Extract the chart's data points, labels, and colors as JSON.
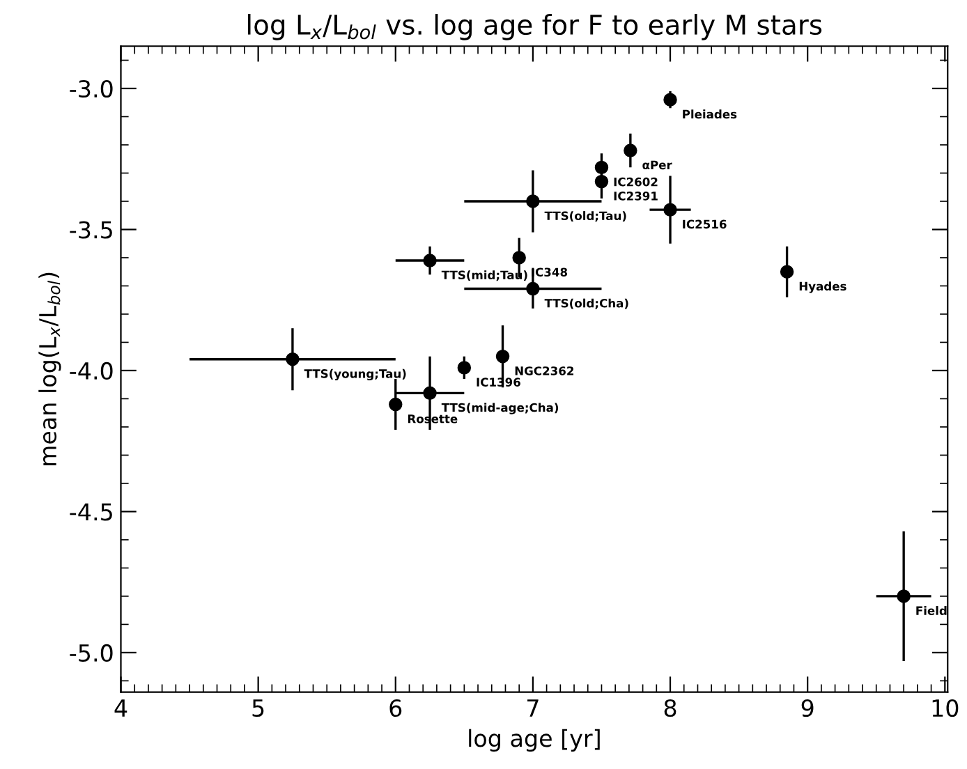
{
  "chart_data": {
    "type": "scatter",
    "title": "log L$_{x}$/L$_{bol}$ vs. log age for F to early M stars",
    "xlabel": "log age [yr]",
    "ylabel": "mean log(L$_{x}$/L$_{bol}$)",
    "xlim": [
      4,
      10.02
    ],
    "ylim": [
      -5.14,
      -2.85
    ],
    "xticks": [
      4,
      5,
      6,
      7,
      8,
      9,
      10
    ],
    "yticks": [
      {
        "value": -3.0,
        "label": "-3.0"
      },
      {
        "value": -3.5,
        "label": "-3.5"
      },
      {
        "value": -4.0,
        "label": "-4.0"
      },
      {
        "value": -4.5,
        "label": "-4.5"
      },
      {
        "value": -5.0,
        "label": "-5.0"
      }
    ],
    "grid": false,
    "legend": false,
    "marker": "circle",
    "series": [
      {
        "color": "#000000",
        "x": [
          8.0,
          7.71,
          7.5,
          7.5,
          7.0,
          8.0,
          6.25,
          6.9,
          7.0,
          8.85,
          5.25,
          6.5,
          6.78,
          6.25,
          6.0,
          9.7
        ],
        "values": [
          -3.04,
          -3.22,
          -3.28,
          -3.33,
          -3.4,
          -3.43,
          -3.61,
          -3.6,
          -3.71,
          -3.65,
          -3.96,
          -3.99,
          -3.95,
          -4.08,
          -4.12,
          -4.8
        ],
        "errors": [
          0.03,
          0.06,
          0.05,
          0.06,
          0.11,
          0.12,
          0.05,
          0.07,
          0.07,
          0.09,
          0.11,
          0.04,
          0.11,
          0.13,
          0.09,
          0.23
        ],
        "xerrors": [
          null,
          null,
          null,
          null,
          0.5,
          0.15,
          0.25,
          null,
          0.5,
          null,
          0.75,
          null,
          null,
          0.25,
          null,
          0.2
        ]
      }
    ],
    "annotations": [
      {
        "text": "Pleiades",
        "x": 8.0,
        "y": -3.04
      },
      {
        "text": "αPer",
        "x": 7.71,
        "y": -3.22
      },
      {
        "text": "IC2602",
        "x": 7.5,
        "y": -3.28
      },
      {
        "text": "IC2391",
        "x": 7.5,
        "y": -3.33
      },
      {
        "text": "TTS(old;Tau)",
        "x": 7.0,
        "y": -3.4
      },
      {
        "text": "IC2516",
        "x": 8.0,
        "y": -3.43
      },
      {
        "text": "TTS(mid;Tau)",
        "x": 6.25,
        "y": -3.61
      },
      {
        "text": "IC348",
        "x": 6.9,
        "y": -3.6
      },
      {
        "text": "TTS(old;Cha)",
        "x": 7.0,
        "y": -3.71
      },
      {
        "text": "Hyades",
        "x": 8.85,
        "y": -3.65
      },
      {
        "text": "TTS(young;Tau)",
        "x": 5.25,
        "y": -3.96
      },
      {
        "text": "IC1396",
        "x": 6.5,
        "y": -3.99
      },
      {
        "text": "NGC2362",
        "x": 6.78,
        "y": -3.95
      },
      {
        "text": "TTS(mid-age;Cha)",
        "x": 6.25,
        "y": -4.08
      },
      {
        "text": "Rosette",
        "x": 6.0,
        "y": -4.12
      },
      {
        "text": "Field",
        "x": 9.7,
        "y": -4.8
      }
    ]
  }
}
